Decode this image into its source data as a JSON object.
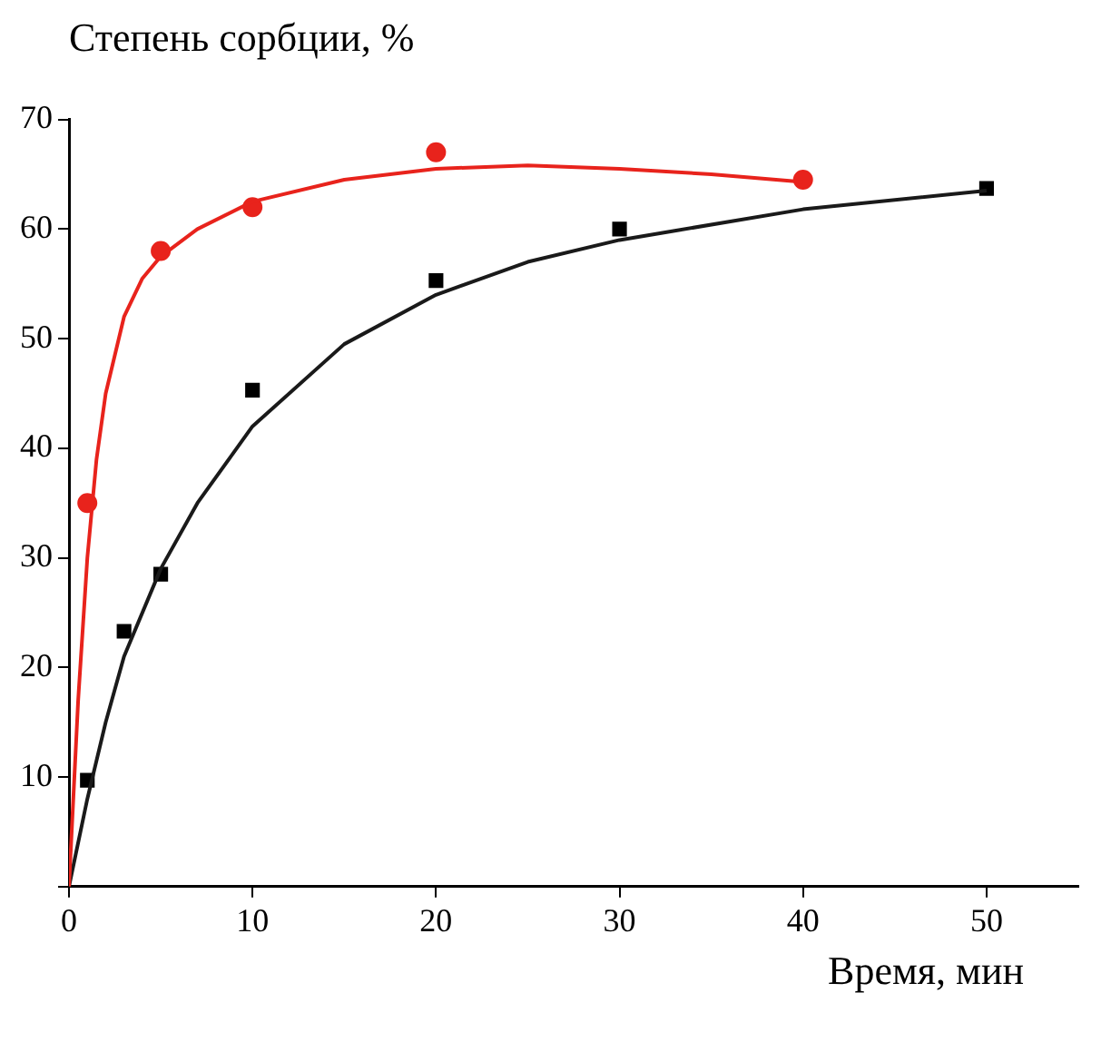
{
  "chart_data": {
    "type": "scatter",
    "xlabel": "Время, мин",
    "ylabel": "Степень сорбции, %",
    "xlim": [
      0,
      55
    ],
    "xticks": [
      0,
      10,
      20,
      30,
      40,
      50
    ],
    "ylim": [
      0,
      70
    ],
    "yticks": [
      {
        "value": 0,
        "label": null
      },
      10,
      20,
      30,
      40,
      50,
      60,
      70
    ],
    "grid": false,
    "legend": false,
    "series": [
      {
        "type": "line",
        "color": "#e8231c",
        "marker": "none",
        "x": [
          0,
          0.5,
          1,
          1.5,
          2,
          3,
          4,
          5,
          7,
          10,
          15,
          20,
          25,
          30,
          35,
          40
        ],
        "values": [
          0,
          17,
          30,
          39,
          45,
          52,
          55.5,
          57.5,
          60,
          62.5,
          64.5,
          65.5,
          65.8,
          65.5,
          65,
          64.3
        ]
      },
      {
        "type": "line",
        "color": "#1a1a1a",
        "marker": "none",
        "x": [
          0,
          1,
          2,
          3,
          5,
          7,
          10,
          15,
          20,
          25,
          30,
          40,
          50
        ],
        "values": [
          0,
          8,
          15,
          21,
          29,
          35,
          42,
          49.5,
          54,
          57,
          59,
          61.8,
          63.5
        ]
      },
      {
        "color": "#e8231c",
        "marker": "circle",
        "x": [
          1,
          5,
          10,
          20,
          40
        ],
        "values": [
          35,
          58,
          62,
          67,
          64.5
        ]
      },
      {
        "color": "#000000",
        "marker": "square",
        "x": [
          1,
          3,
          5,
          10,
          20,
          30,
          50
        ],
        "values": [
          9.7,
          23.3,
          28.5,
          45.3,
          55.3,
          60,
          63.7
        ]
      }
    ]
  }
}
